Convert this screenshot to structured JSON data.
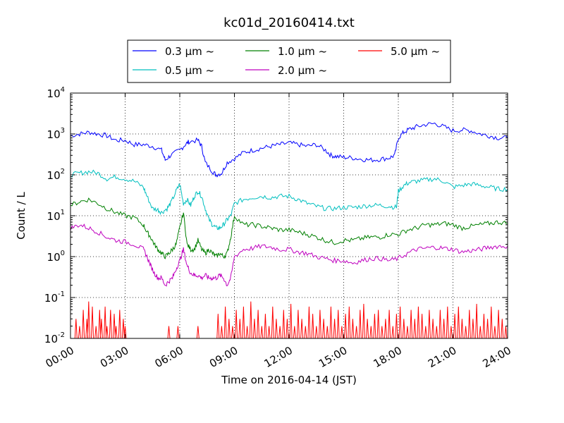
{
  "chart_data": {
    "type": "line",
    "title": "kc01d_20160414.txt",
    "xlabel": "Time on 2016-04-14 (JST)",
    "ylabel": "Count / L",
    "yscale": "log",
    "xlim": [
      0,
      24
    ],
    "ylim": [
      0.01,
      10000
    ],
    "grid": true,
    "legend_position": "top-center",
    "x_tick_labels": [
      "00:00",
      "03:00",
      "06:00",
      "09:00",
      "12:00",
      "15:00",
      "18:00",
      "21:00",
      "24:00"
    ],
    "y_tick_labels": [
      {
        "base": "10",
        "exp": "-2"
      },
      {
        "base": "10",
        "exp": "-1"
      },
      {
        "base": "10",
        "exp": "0"
      },
      {
        "base": "10",
        "exp": "1"
      },
      {
        "base": "10",
        "exp": "2"
      },
      {
        "base": "10",
        "exp": "3"
      },
      {
        "base": "10",
        "exp": "4"
      }
    ],
    "series": [
      {
        "name": "0.3 μm ~",
        "color": "#0000ff",
        "x": [
          0,
          0.5,
          1,
          1.5,
          2,
          2.5,
          3,
          3.5,
          4,
          4.5,
          5,
          5.2,
          5.5,
          6,
          6.3,
          6.5,
          7,
          7.2,
          7.4,
          7.8,
          8,
          8.3,
          8.6,
          9,
          9.5,
          10,
          10.5,
          11,
          11.5,
          12,
          12.5,
          13,
          13.5,
          14,
          14.3,
          14.6,
          15,
          15.5,
          16,
          16.5,
          17,
          17.5,
          17.8,
          18,
          18.3,
          18.6,
          19,
          19.5,
          20,
          20.5,
          21,
          21.5,
          22,
          22.5,
          23,
          23.5,
          24
        ],
        "y": [
          900,
          1000,
          1100,
          1000,
          900,
          700,
          700,
          550,
          550,
          500,
          400,
          230,
          300,
          400,
          550,
          650,
          700,
          500,
          200,
          120,
          100,
          110,
          200,
          250,
          350,
          400,
          450,
          500,
          550,
          600,
          550,
          500,
          550,
          400,
          300,
          280,
          270,
          260,
          240,
          230,
          240,
          260,
          300,
          800,
          1100,
          1300,
          1500,
          1700,
          1800,
          1500,
          1200,
          1250,
          1200,
          1000,
          900,
          800,
          800
        ]
      },
      {
        "name": "0.5 μm ~",
        "color": "#00bfbf",
        "x": [
          0,
          0.5,
          1,
          1.5,
          2,
          2.5,
          3,
          3.5,
          4,
          4.2,
          4.5,
          4.8,
          5,
          5.3,
          5.5,
          5.8,
          6,
          6.2,
          6.4,
          6.6,
          6.8,
          7,
          7.2,
          7.4,
          7.6,
          7.8,
          8,
          8.2,
          8.4,
          8.6,
          8.8,
          9,
          9.5,
          10,
          10.5,
          11,
          11.5,
          12,
          12.5,
          13,
          13.5,
          14,
          14.5,
          15,
          15.5,
          16,
          16.5,
          17,
          17.5,
          17.9,
          18,
          18.3,
          18.6,
          19,
          19.5,
          20,
          20.5,
          21,
          21.5,
          22,
          22.5,
          23,
          23.5,
          24
        ],
        "y": [
          100,
          110,
          120,
          110,
          80,
          90,
          80,
          70,
          50,
          30,
          15,
          14,
          12,
          15,
          20,
          40,
          60,
          20,
          25,
          18,
          30,
          40,
          30,
          15,
          8,
          6,
          5,
          5,
          6,
          8,
          10,
          20,
          25,
          28,
          30,
          28,
          30,
          30,
          25,
          20,
          17,
          15,
          15,
          16,
          16,
          17,
          18,
          18,
          17,
          16,
          40,
          55,
          65,
          70,
          75,
          80,
          70,
          50,
          55,
          60,
          55,
          50,
          45,
          45
        ]
      },
      {
        "name": "1.0 μm ~",
        "color": "#008000",
        "x": [
          0,
          0.5,
          1,
          1.5,
          2,
          2.5,
          3,
          3.5,
          4,
          4.2,
          4.4,
          4.6,
          4.8,
          5,
          5.2,
          5.4,
          5.6,
          5.8,
          6,
          6.2,
          6.4,
          6.6,
          6.8,
          7,
          7.2,
          7.4,
          7.6,
          7.8,
          8,
          8.2,
          8.4,
          8.6,
          8.8,
          9,
          9.5,
          10,
          10.5,
          11,
          11.5,
          12,
          12.5,
          13,
          13.5,
          14,
          14.5,
          15,
          15.5,
          16,
          16.5,
          17,
          17.5,
          18,
          18.5,
          19,
          19.5,
          20,
          20.5,
          21,
          21.5,
          22,
          22.5,
          23,
          23.5,
          24
        ],
        "y": [
          18,
          22,
          25,
          20,
          15,
          12,
          10,
          9,
          6,
          4,
          3,
          2,
          1.5,
          1.2,
          1.0,
          1.2,
          1.5,
          2,
          5,
          12,
          2,
          1.5,
          1.5,
          2.5,
          1.5,
          1.2,
          1.5,
          1.2,
          1,
          1.2,
          1,
          1.2,
          3,
          10,
          6,
          6,
          5.5,
          5,
          4.5,
          4.5,
          4,
          3.5,
          3,
          2.5,
          2.2,
          2.5,
          2.5,
          2.8,
          3,
          3,
          3.5,
          3.5,
          4.5,
          5,
          6,
          6,
          6.5,
          6,
          5,
          5.5,
          6,
          6.5,
          7,
          6.5
        ]
      },
      {
        "name": "2.0 μm ~",
        "color": "#bf00bf",
        "x": [
          0,
          0.5,
          1,
          1.5,
          2,
          2.5,
          3,
          3.5,
          4,
          4.2,
          4.4,
          4.6,
          4.8,
          5,
          5.2,
          5.4,
          5.6,
          5.8,
          6,
          6.2,
          6.4,
          6.6,
          6.8,
          7,
          7.2,
          7.4,
          7.6,
          7.8,
          8,
          8.2,
          8.4,
          8.6,
          8.8,
          9,
          9.5,
          10,
          10.5,
          11,
          11.5,
          12,
          12.5,
          13,
          13.5,
          14,
          14.5,
          15,
          15.5,
          16,
          16.5,
          17,
          17.5,
          18,
          18.5,
          19,
          19.5,
          20,
          20.5,
          21,
          21.5,
          22,
          22.5,
          23,
          23.5,
          24
        ],
        "y": [
          5,
          6,
          5,
          4,
          3,
          2.5,
          2.3,
          2,
          1.5,
          1,
          0.6,
          0.4,
          0.3,
          0.3,
          0.2,
          0.25,
          0.3,
          0.5,
          0.8,
          1.5,
          0.6,
          0.4,
          0.35,
          0.35,
          0.3,
          0.35,
          0.3,
          0.3,
          0.3,
          0.35,
          0.3,
          0.2,
          0.3,
          1,
          1.5,
          1.6,
          1.8,
          1.7,
          1.5,
          1.5,
          1.3,
          1.2,
          1.0,
          0.9,
          0.8,
          0.8,
          0.7,
          0.8,
          0.9,
          0.9,
          0.8,
          0.9,
          1.2,
          1.5,
          1.6,
          1.7,
          1.6,
          1.5,
          1.3,
          1.4,
          1.5,
          1.7,
          1.8,
          1.8
        ]
      },
      {
        "name": "5.0 μm ~",
        "color": "#ff0000",
        "x": [
          0.3,
          0.5,
          0.7,
          0.9,
          1.0,
          1.2,
          1.4,
          1.6,
          1.7,
          1.9,
          2.0,
          2.2,
          2.4,
          2.5,
          2.7,
          2.9,
          3.0,
          5.4,
          5.9,
          7.0,
          8.1,
          8.3,
          8.5,
          8.7,
          8.9,
          9.1,
          9.3,
          9.5,
          9.7,
          9.9,
          10.1,
          10.3,
          10.5,
          10.7,
          10.9,
          11.1,
          11.3,
          11.5,
          11.7,
          11.9,
          12.1,
          12.3,
          12.5,
          12.7,
          12.9,
          13.1,
          13.3,
          13.5,
          13.7,
          13.9,
          14.1,
          14.3,
          14.5,
          14.7,
          14.9,
          15.1,
          15.3,
          15.5,
          15.7,
          15.9,
          16.1,
          16.3,
          16.5,
          16.7,
          16.9,
          17.1,
          17.3,
          17.5,
          17.7,
          17.9,
          18.1,
          18.3,
          18.5,
          18.7,
          18.9,
          19.1,
          19.3,
          19.5,
          19.7,
          19.9,
          20.1,
          20.3,
          20.5,
          20.7,
          20.9,
          21.1,
          21.3,
          21.5,
          21.7,
          21.9,
          22.1,
          22.3,
          22.5,
          22.7,
          22.9,
          23.1,
          23.3,
          23.5,
          23.7,
          23.9
        ],
        "y": [
          0.03,
          0.02,
          0.05,
          0.03,
          0.08,
          0.06,
          0.02,
          0.05,
          0.03,
          0.06,
          0.02,
          0.05,
          0.04,
          0.02,
          0.05,
          0.03,
          0.02,
          0.02,
          0.02,
          0.02,
          0.04,
          0.02,
          0.06,
          0.03,
          0.02,
          0.05,
          0.03,
          0.06,
          0.02,
          0.08,
          0.03,
          0.05,
          0.02,
          0.04,
          0.02,
          0.06,
          0.03,
          0.02,
          0.05,
          0.03,
          0.07,
          0.02,
          0.05,
          0.03,
          0.02,
          0.06,
          0.04,
          0.02,
          0.05,
          0.03,
          0.02,
          0.06,
          0.03,
          0.05,
          0.02,
          0.04,
          0.06,
          0.03,
          0.02,
          0.05,
          0.07,
          0.03,
          0.02,
          0.04,
          0.05,
          0.02,
          0.03,
          0.05,
          0.02,
          0.04,
          0.06,
          0.03,
          0.02,
          0.05,
          0.03,
          0.06,
          0.04,
          0.02,
          0.05,
          0.03,
          0.02,
          0.05,
          0.03,
          0.06,
          0.02,
          0.04,
          0.06,
          0.03,
          0.02,
          0.05,
          0.03,
          0.07,
          0.02,
          0.04,
          0.03,
          0.06,
          0.02,
          0.05,
          0.03,
          0.02
        ]
      }
    ]
  }
}
